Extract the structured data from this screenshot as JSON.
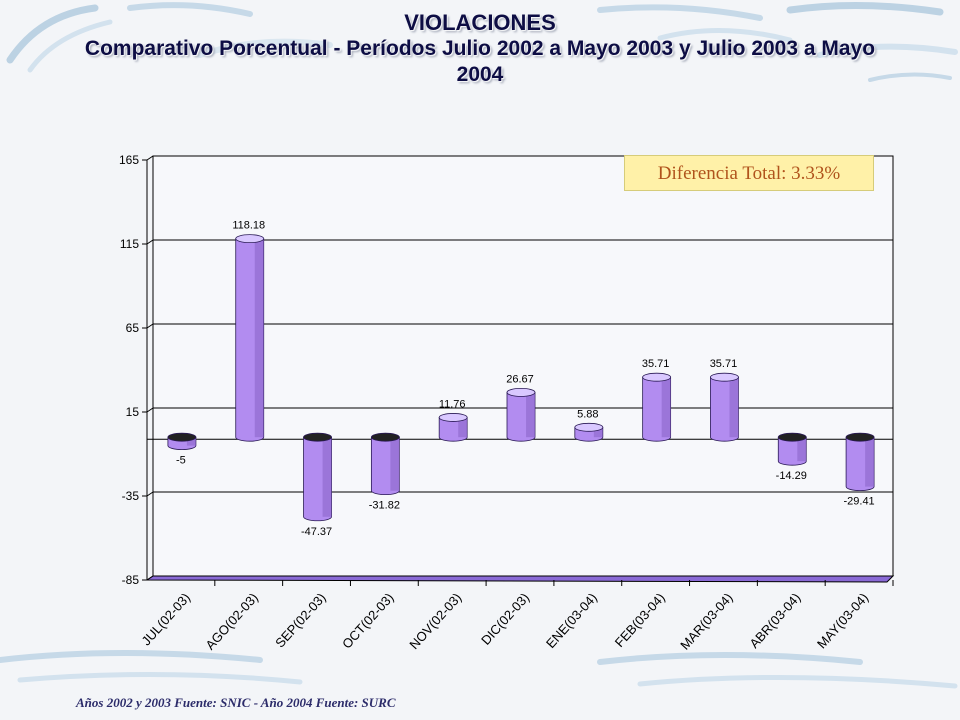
{
  "title": {
    "line1": "VIOLACIONES",
    "line2": "Comparativo Porcentual - Períodos Julio 2002 a Mayo 2003 y Julio 2003 a Mayo 2004"
  },
  "annotation": "Diferencia Total: 3.33%",
  "source": "Años 2002 y 2003 Fuente: SNIC - Año 2004 Fuente: SURC",
  "colors": {
    "bar_front": "#b28cf0",
    "bar_side": "#8c66c9",
    "bar_top": "#d9c8ff",
    "title": "#0d0d44",
    "box_fill": "#fff1a8",
    "box_text": "#b0531c"
  },
  "chart_data": {
    "type": "bar",
    "categories": [
      "JUL(02-03)",
      "AGO(02-03)",
      "SEP(02-03)",
      "OCT(02-03)",
      "NOV(02-03)",
      "DIC(02-03)",
      "ENE(03-04)",
      "FEB(03-04)",
      "MAR(03-04)",
      "ABR(03-04)",
      "MAY(03-04)"
    ],
    "values": [
      -5,
      118.18,
      -47.37,
      -31.82,
      11.76,
      26.67,
      5.88,
      35.71,
      35.71,
      -14.29,
      -29.41
    ],
    "data_labels": [
      "-5",
      "118.18",
      "-47.37",
      "-31.82",
      "11.76",
      "26.67",
      "5.88",
      "35.71",
      "35.71",
      "-14.29",
      "-29.41"
    ],
    "yticks": [
      "165",
      "115",
      "65",
      "15",
      "-35",
      "-85"
    ],
    "ylim": [
      -85,
      165
    ],
    "grid": true,
    "style": "3d-cylinder"
  }
}
